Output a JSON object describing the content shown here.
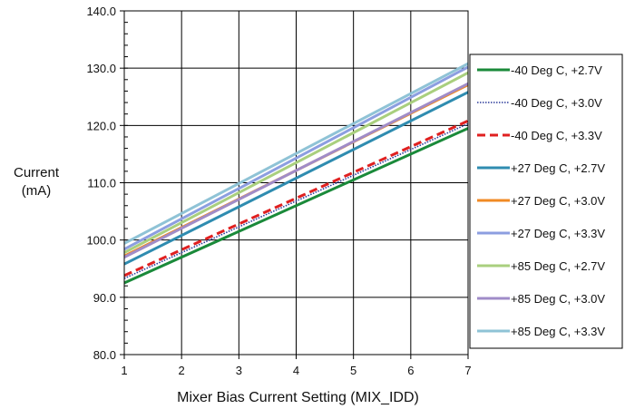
{
  "chart_data": {
    "type": "line",
    "xlabel": "Mixer Bias Current Setting (MIX_IDD)",
    "ylabel_lines": [
      "Current",
      "(mA)"
    ],
    "xlim": [
      1,
      7
    ],
    "ylim": [
      80,
      140
    ],
    "x_ticks": [
      1,
      2,
      3,
      4,
      5,
      6,
      7
    ],
    "y_ticks": [
      "80.0",
      "90.0",
      "100.0",
      "110.0",
      "120.0",
      "130.0",
      "140.0"
    ],
    "grid": true,
    "legend_position": "right",
    "x": [
      1,
      7
    ],
    "series": [
      {
        "name": "-40 Deg C, +2.7V",
        "color": "#1a8a3a",
        "dash": "solid",
        "values": [
          92.5,
          119.5
        ]
      },
      {
        "name": "-40 Deg C, +3.0V",
        "color": "#2a3a9a",
        "dash": "dotted",
        "values": [
          93.3,
          120.3
        ]
      },
      {
        "name": "-40 Deg C, +3.3V",
        "color": "#e02020",
        "dash": "dashed",
        "values": [
          93.8,
          120.8
        ]
      },
      {
        "name": "+27 Deg C, +2.7V",
        "color": "#2f8cb0",
        "dash": "solid",
        "values": [
          95.8,
          125.8
        ]
      },
      {
        "name": "+27 Deg C, +3.0V",
        "color": "#f08a24",
        "dash": "solid",
        "values": [
          97.2,
          127.1
        ]
      },
      {
        "name": "+27 Deg C, +3.3V",
        "color": "#8c9ee0",
        "dash": "solid",
        "values": [
          98.4,
          130.2
        ]
      },
      {
        "name": "+85 Deg C, +2.7V",
        "color": "#a9cf7e",
        "dash": "solid",
        "values": [
          97.8,
          129.2
        ]
      },
      {
        "name": "+85 Deg C, +3.0V",
        "color": "#a08cc8",
        "dash": "solid",
        "values": [
          97.0,
          127.3
        ]
      },
      {
        "name": "+85 Deg C, +3.3V",
        "color": "#8fc3d6",
        "dash": "solid",
        "values": [
          99.4,
          130.8
        ]
      }
    ]
  }
}
